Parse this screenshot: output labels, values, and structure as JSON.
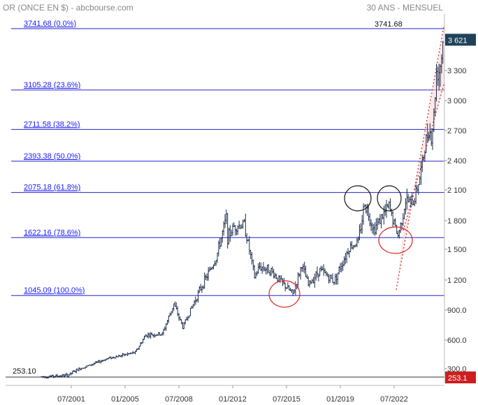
{
  "header": {
    "left": "OR (ONCE EN $) - abcbourse.com",
    "right": "30 ANS - MENSUEL"
  },
  "chart_data": {
    "type": "ohlc",
    "title": "OR (ONCE EN $) - abcbourse.com",
    "subtitle": "30 ANS - MENSUEL",
    "ylim": [
      253.1,
      3860
    ],
    "y_ticks": [
      {
        "value": 300,
        "label": "300.0"
      },
      {
        "value": 600,
        "label": "600.0"
      },
      {
        "value": 900,
        "label": "900.0"
      },
      {
        "value": 1200,
        "label": "1 200"
      },
      {
        "value": 1500,
        "label": "1 500"
      },
      {
        "value": 1800,
        "label": "1 800"
      },
      {
        "value": 2100,
        "label": "2 100"
      },
      {
        "value": 2400,
        "label": "2 400"
      },
      {
        "value": 2700,
        "label": "2 700"
      },
      {
        "value": 3000,
        "label": "3 000"
      },
      {
        "value": 3300,
        "label": "3 300"
      }
    ],
    "x_ticks": [
      "07/2001",
      "01/2005",
      "07/2008",
      "01/2012",
      "07/2015",
      "01/2019",
      "07/2022"
    ],
    "fibonacci_levels": [
      {
        "value": 3741.68,
        "label": "3741.68  (0.0%)"
      },
      {
        "value": 3105.28,
        "label": "3105.28  (23.6%)"
      },
      {
        "value": 2711.58,
        "label": "2711.58  (38.2%)"
      },
      {
        "value": 2393.38,
        "label": "2393.38  (50.0%)"
      },
      {
        "value": 2075.18,
        "label": "2075.18  (61.8%)"
      },
      {
        "value": 1622.16,
        "label": "1622.16  (78.6%)"
      },
      {
        "value": 1045.09,
        "label": "1045.09  (100.0%)"
      }
    ],
    "high_annotation": "3741.68",
    "low_annotation": "253.10",
    "last_price": "3 621",
    "low_badge": "253.1",
    "anchor_points": [
      [
        "1999-08",
        255
      ],
      [
        "2001-04",
        262
      ],
      [
        "2002-06",
        320
      ],
      [
        "2003-12",
        410
      ],
      [
        "2005-09",
        470
      ],
      [
        "2006-05",
        650
      ],
      [
        "2007-06",
        660
      ],
      [
        "2008-03",
        960
      ],
      [
        "2008-10",
        730
      ],
      [
        "2009-12",
        1120
      ],
      [
        "2010-12",
        1410
      ],
      [
        "2011-08",
        1830
      ],
      [
        "2011-09",
        1620
      ],
      [
        "2012-02",
        1740
      ],
      [
        "2012-10",
        1760
      ],
      [
        "2013-06",
        1230
      ],
      [
        "2013-10",
        1330
      ],
      [
        "2014-06",
        1300
      ],
      [
        "2015-12",
        1060
      ],
      [
        "2016-07",
        1350
      ],
      [
        "2016-12",
        1150
      ],
      [
        "2017-09",
        1300
      ],
      [
        "2018-08",
        1190
      ],
      [
        "2019-08",
        1520
      ],
      [
        "2020-03",
        1580
      ],
      [
        "2020-08",
        1980
      ],
      [
        "2021-03",
        1710
      ],
      [
        "2021-08",
        1810
      ],
      [
        "2022-03",
        1940
      ],
      [
        "2022-10",
        1640
      ],
      [
        "2023-04",
        1990
      ],
      [
        "2023-10",
        1980
      ],
      [
        "2024-03",
        2230
      ],
      [
        "2024-10",
        2740
      ],
      [
        "2024-12",
        2620
      ],
      [
        "2025-02",
        2850
      ],
      [
        "2025-04",
        3290
      ],
      [
        "2025-06",
        3300
      ],
      [
        "2025-08",
        3450
      ],
      [
        "2025-09",
        3621
      ]
    ]
  }
}
